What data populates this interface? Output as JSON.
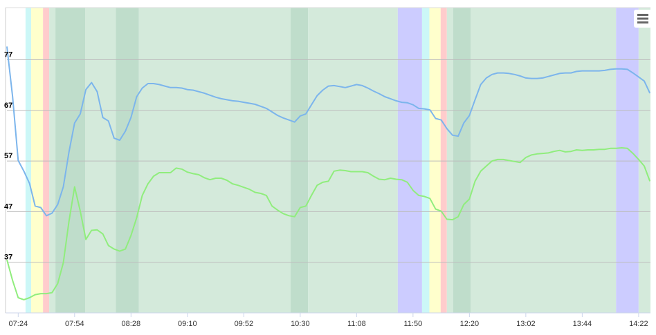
{
  "chart_data": {
    "type": "line",
    "categories": [
      null,
      null,
      "07:24",
      null,
      null,
      null,
      null,
      null,
      null,
      null,
      null,
      null,
      "07:54",
      null,
      null,
      null,
      null,
      null,
      null,
      null,
      null,
      null,
      "08:28",
      null,
      null,
      null,
      null,
      null,
      null,
      null,
      null,
      null,
      "09:10",
      null,
      null,
      null,
      null,
      null,
      null,
      null,
      null,
      null,
      "09:52",
      null,
      null,
      null,
      null,
      null,
      null,
      null,
      null,
      null,
      "10:30",
      null,
      null,
      null,
      null,
      null,
      null,
      null,
      null,
      null,
      "11:08",
      null,
      null,
      null,
      null,
      null,
      null,
      null,
      null,
      null,
      "11:50",
      null,
      null,
      null,
      null,
      null,
      null,
      null,
      null,
      null,
      "12:20",
      null,
      null,
      null,
      null,
      null,
      null,
      null,
      null,
      null,
      "13:02",
      null,
      null,
      null,
      null,
      null,
      null,
      null,
      null,
      null,
      "13:44",
      null,
      null,
      null,
      null,
      null,
      null,
      null,
      null,
      null,
      "14:22",
      null,
      null
    ],
    "series": [
      {
        "color": "#7cb5ec",
        "values": [
          79.6,
          69.7,
          57.1,
          55.0,
          52.6,
          48.1,
          47.8,
          46.2,
          46.7,
          48.4,
          51.9,
          58.8,
          64.5,
          66.3,
          71.1,
          72.5,
          70.7,
          65.6,
          64.9,
          61.5,
          61.1,
          62.9,
          65.6,
          69.7,
          71.4,
          72.3,
          72.3,
          72.1,
          71.8,
          71.5,
          71.5,
          71.4,
          71.1,
          71.0,
          70.7,
          70.4,
          70.0,
          69.6,
          69.3,
          69.1,
          68.9,
          68.8,
          68.6,
          68.4,
          68.2,
          67.8,
          67.4,
          66.7,
          66.0,
          65.5,
          65.1,
          64.7,
          65.9,
          66.3,
          68.1,
          69.9,
          71.0,
          71.8,
          71.9,
          71.7,
          71.5,
          71.8,
          72.1,
          71.9,
          71.4,
          70.8,
          70.3,
          69.7,
          69.3,
          68.9,
          68.6,
          68.5,
          68.1,
          67.4,
          67.3,
          67.1,
          65.4,
          65.1,
          63.4,
          62.1,
          61.9,
          64.5,
          66.0,
          69.1,
          72.1,
          73.4,
          74.1,
          74.4,
          74.4,
          74.3,
          74.1,
          73.8,
          73.4,
          73.3,
          73.3,
          73.4,
          73.7,
          74.0,
          74.3,
          74.4,
          74.4,
          74.7,
          74.8,
          74.8,
          74.8,
          74.8,
          74.9,
          75.1,
          75.2,
          75.2,
          75.1,
          74.4,
          73.6,
          72.8,
          70.4
        ]
      },
      {
        "color": "#90ed7d",
        "values": [
          37.5,
          33.4,
          30.0,
          29.6,
          30.0,
          30.6,
          30.8,
          30.8,
          31.0,
          32.8,
          36.9,
          45.1,
          51.9,
          47.1,
          41.5,
          43.3,
          43.4,
          42.6,
          40.3,
          39.6,
          39.2,
          39.6,
          42.3,
          45.8,
          50.2,
          52.5,
          54.0,
          54.7,
          54.7,
          54.7,
          55.6,
          55.4,
          54.8,
          54.5,
          54.3,
          53.7,
          53.3,
          53.6,
          53.6,
          53.2,
          52.5,
          52.2,
          51.8,
          51.4,
          50.8,
          50.6,
          50.2,
          48.1,
          47.3,
          46.6,
          46.2,
          46.0,
          47.8,
          48.1,
          50.2,
          52.2,
          52.8,
          53.0,
          55.0,
          55.2,
          55.1,
          54.9,
          54.9,
          54.9,
          54.7,
          54.0,
          53.4,
          53.3,
          53.6,
          53.4,
          53.3,
          52.8,
          51.2,
          50.2,
          50.0,
          49.6,
          47.5,
          47.1,
          45.5,
          45.4,
          46.0,
          48.4,
          49.5,
          53.0,
          55.0,
          56.0,
          57.0,
          57.3,
          57.3,
          57.1,
          56.9,
          56.7,
          57.7,
          58.2,
          58.4,
          58.5,
          58.6,
          58.9,
          59.1,
          58.8,
          58.9,
          59.2,
          59.1,
          59.2,
          59.2,
          59.3,
          59.3,
          59.5,
          59.5,
          59.6,
          59.5,
          58.5,
          57.3,
          56.0,
          53.0
        ]
      }
    ],
    "bands": [
      {
        "from": 3.3,
        "to": 4.3,
        "color": "#ccf7f7"
      },
      {
        "from": 4.3,
        "to": 6.4,
        "color": "#ffffcc"
      },
      {
        "from": 6.4,
        "to": 7.5,
        "color": "#ffcccc"
      },
      {
        "from": 7.5,
        "to": 8.6,
        "color": "#d4eadb"
      },
      {
        "from": 8.6,
        "to": 13.9,
        "color": "#bfddcb"
      },
      {
        "from": 13.9,
        "to": 19.3,
        "color": "#d4eadb"
      },
      {
        "from": 19.3,
        "to": 23.4,
        "color": "#bfddcb"
      },
      {
        "from": 23.4,
        "to": 50.3,
        "color": "#d4eadb"
      },
      {
        "from": 50.3,
        "to": 53.4,
        "color": "#bfddcb"
      },
      {
        "from": 53.4,
        "to": 69.3,
        "color": "#d4eadb"
      },
      {
        "from": 69.3,
        "to": 73.6,
        "color": "#ccccff"
      },
      {
        "from": 73.6,
        "to": 74.9,
        "color": "#ccf7f7"
      },
      {
        "from": 74.9,
        "to": 76.9,
        "color": "#ffffcc"
      },
      {
        "from": 76.9,
        "to": 78.0,
        "color": "#ffcccc"
      },
      {
        "from": 78.0,
        "to": 79.1,
        "color": "#d4eadb"
      },
      {
        "from": 79.1,
        "to": 82.2,
        "color": "#bfddcb"
      },
      {
        "from": 82.2,
        "to": 108.0,
        "color": "#d4eadb"
      },
      {
        "from": 108.0,
        "to": 112.0,
        "color": "#ccccff"
      },
      {
        "from": 112.0,
        "to": 114.1,
        "color": "#d4eadb"
      }
    ],
    "xlim": [
      0,
      114.1
    ],
    "ylim": [
      27,
      87.3
    ],
    "yticks": [
      37,
      47,
      57,
      67,
      77
    ],
    "grid": true
  }
}
